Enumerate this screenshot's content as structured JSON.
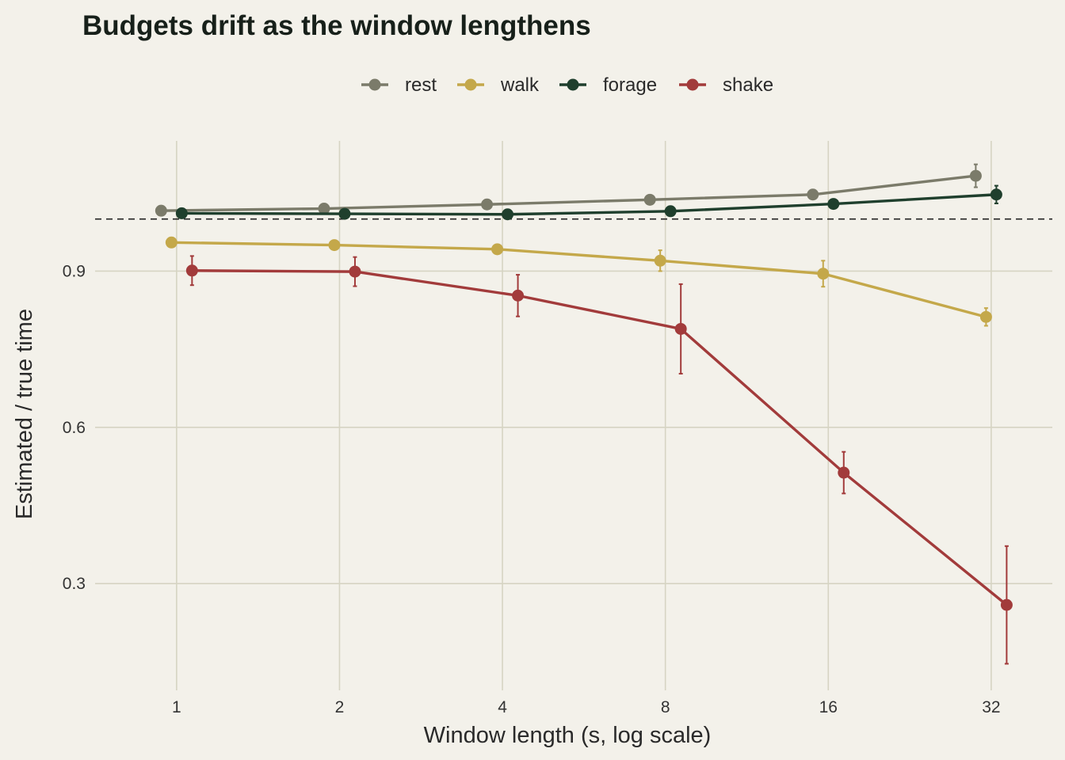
{
  "chart_data": {
    "type": "line",
    "title": "Budgets drift as the window lengthens",
    "xlabel": "Window length (s, log scale)",
    "ylabel": "Estimated / true time",
    "x_scale": "log2",
    "x_ticks": [
      1,
      2,
      4,
      8,
      16,
      32
    ],
    "y_ticks": [
      0.3,
      0.6,
      0.9
    ],
    "xlim": [
      0.707,
      41.5
    ],
    "ylim": [
      0.095,
      1.15
    ],
    "reference_line_y": 1.0,
    "grid": true,
    "legend_position": "top",
    "x": [
      1,
      2,
      4,
      8,
      16,
      32
    ],
    "series": [
      {
        "name": "rest",
        "color": "#7b7b6a",
        "values": [
          1.016,
          1.02,
          1.028,
          1.037,
          1.047,
          1.083
        ],
        "err": [
          0.0,
          0.0,
          0.0,
          0.0,
          0.0,
          0.022
        ]
      },
      {
        "name": "walk",
        "color": "#c4a84a",
        "values": [
          0.955,
          0.95,
          0.942,
          0.92,
          0.895,
          0.812
        ],
        "err": [
          0.0,
          0.0,
          0.008,
          0.02,
          0.025,
          0.017
        ]
      },
      {
        "name": "forage",
        "color": "#1f3f2d",
        "values": [
          1.011,
          1.01,
          1.009,
          1.015,
          1.029,
          1.047
        ],
        "err": [
          0.0,
          0.0,
          0.0,
          0.0,
          0.0,
          0.017
        ]
      },
      {
        "name": "shake",
        "color": "#a23b3b",
        "values": [
          0.901,
          0.899,
          0.853,
          0.789,
          0.513,
          0.259
        ],
        "err": [
          0.028,
          0.028,
          0.04,
          0.086,
          0.04,
          0.113
        ]
      }
    ]
  }
}
